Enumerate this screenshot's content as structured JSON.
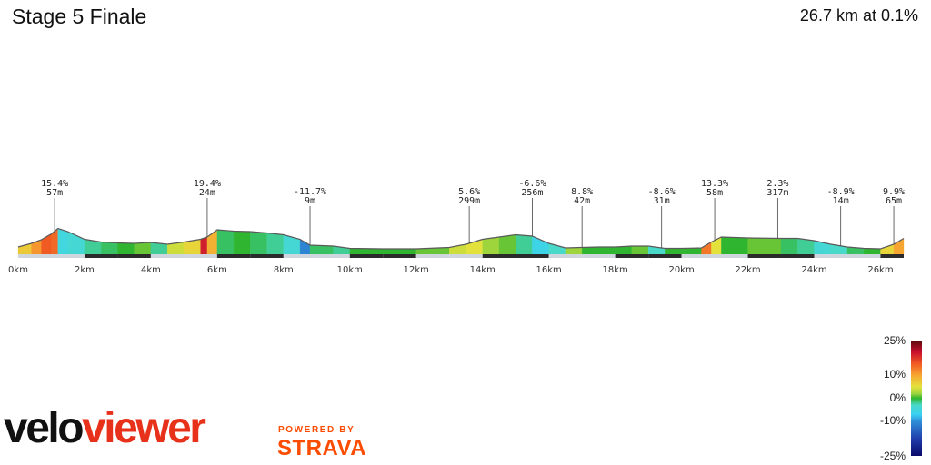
{
  "header": {
    "title": "Stage 5 Finale",
    "summary": "26.7 km at 0.1%"
  },
  "chart_data": {
    "type": "area",
    "x_unit": "km",
    "xlim": [
      0,
      26.7
    ],
    "x_ticks": [
      0,
      2,
      4,
      6,
      8,
      10,
      12,
      14,
      16,
      18,
      20,
      22,
      24,
      26
    ],
    "x_tick_labels": [
      "0km",
      "2km",
      "4km",
      "6km",
      "8km",
      "10km",
      "12km",
      "14km",
      "16km",
      "18km",
      "20km",
      "22km",
      "24km",
      "26km"
    ],
    "profile": [
      {
        "x": 0.0,
        "e": 16,
        "g": 3
      },
      {
        "x": 0.4,
        "e": 24,
        "g": 7
      },
      {
        "x": 0.7,
        "e": 32,
        "g": 11
      },
      {
        "x": 1.0,
        "e": 45,
        "g": 15
      },
      {
        "x": 1.2,
        "e": 57,
        "g": 14
      },
      {
        "x": 1.5,
        "e": 50,
        "g": -5
      },
      {
        "x": 2.0,
        "e": 33,
        "g": -4
      },
      {
        "x": 2.5,
        "e": 27,
        "g": -2
      },
      {
        "x": 3.0,
        "e": 25,
        "g": -1
      },
      {
        "x": 3.5,
        "e": 24,
        "g": 0
      },
      {
        "x": 4.0,
        "e": 26,
        "g": 1
      },
      {
        "x": 4.5,
        "e": 22,
        "g": -2
      },
      {
        "x": 5.0,
        "e": 27,
        "g": 4
      },
      {
        "x": 5.5,
        "e": 33,
        "g": 6
      },
      {
        "x": 5.7,
        "e": 38,
        "g": 19
      },
      {
        "x": 6.0,
        "e": 54,
        "g": 9
      },
      {
        "x": 6.5,
        "e": 51,
        "g": -1
      },
      {
        "x": 7.0,
        "e": 50,
        "g": 0
      },
      {
        "x": 7.5,
        "e": 47,
        "g": -1
      },
      {
        "x": 8.0,
        "e": 43,
        "g": -2
      },
      {
        "x": 8.5,
        "e": 33,
        "g": -4
      },
      {
        "x": 8.8,
        "e": 20,
        "g": -11
      },
      {
        "x": 9.5,
        "e": 18,
        "g": -1
      },
      {
        "x": 10.0,
        "e": 13,
        "g": -2
      },
      {
        "x": 11.0,
        "e": 12,
        "g": 0
      },
      {
        "x": 12.0,
        "e": 12,
        "g": 0
      },
      {
        "x": 13.0,
        "e": 15,
        "g": 1
      },
      {
        "x": 13.5,
        "e": 22,
        "g": 4
      },
      {
        "x": 14.0,
        "e": 33,
        "g": 5
      },
      {
        "x": 14.5,
        "e": 38,
        "g": 2
      },
      {
        "x": 15.0,
        "e": 43,
        "g": 1
      },
      {
        "x": 15.5,
        "e": 40,
        "g": -2
      },
      {
        "x": 16.0,
        "e": 24,
        "g": -6
      },
      {
        "x": 16.5,
        "e": 14,
        "g": -3
      },
      {
        "x": 17.0,
        "e": 15,
        "g": 2
      },
      {
        "x": 17.5,
        "e": 16,
        "g": 0
      },
      {
        "x": 18.0,
        "e": 16,
        "g": 0
      },
      {
        "x": 18.5,
        "e": 18,
        "g": 0
      },
      {
        "x": 19.0,
        "e": 18,
        "g": 1
      },
      {
        "x": 19.5,
        "e": 13,
        "g": -3
      },
      {
        "x": 20.0,
        "e": 13,
        "g": 0
      },
      {
        "x": 20.6,
        "e": 14,
        "g": 0
      },
      {
        "x": 20.9,
        "e": 27,
        "g": 13
      },
      {
        "x": 21.2,
        "e": 38,
        "g": 5
      },
      {
        "x": 22.0,
        "e": 36,
        "g": 0
      },
      {
        "x": 23.0,
        "e": 35,
        "g": 1
      },
      {
        "x": 23.5,
        "e": 35,
        "g": -1
      },
      {
        "x": 24.0,
        "e": 30,
        "g": -2
      },
      {
        "x": 24.5,
        "e": 22,
        "g": -4
      },
      {
        "x": 25.0,
        "e": 16,
        "g": -3
      },
      {
        "x": 25.5,
        "e": 13,
        "g": -1
      },
      {
        "x": 26.0,
        "e": 12,
        "g": 0
      },
      {
        "x": 26.4,
        "e": 22,
        "g": 6
      },
      {
        "x": 26.7,
        "e": 35,
        "g": 10
      }
    ],
    "annotations": [
      {
        "x": 1.1,
        "grade": "15.4%",
        "elev": "57m",
        "row": 0
      },
      {
        "x": 5.7,
        "grade": "19.4%",
        "elev": "24m",
        "row": 0
      },
      {
        "x": 8.8,
        "grade": "-11.7%",
        "elev": "9m",
        "row": 1
      },
      {
        "x": 13.6,
        "grade": "5.6%",
        "elev": "299m",
        "row": 1
      },
      {
        "x": 15.5,
        "grade": "-6.6%",
        "elev": "256m",
        "row": 0
      },
      {
        "x": 17.0,
        "grade": "8.8%",
        "elev": "42m",
        "row": 1
      },
      {
        "x": 19.4,
        "grade": "-8.6%",
        "elev": "31m",
        "row": 1
      },
      {
        "x": 21.0,
        "grade": "13.3%",
        "elev": "58m",
        "row": 0
      },
      {
        "x": 22.9,
        "grade": "2.3%",
        "elev": "317m",
        "row": 0
      },
      {
        "x": 24.8,
        "grade": "-8.9%",
        "elev": "14m",
        "row": 1
      },
      {
        "x": 26.4,
        "grade": "9.9%",
        "elev": "65m",
        "row": 1
      }
    ],
    "legend": {
      "ticks": [
        "25%",
        "10%",
        "0%",
        "-10%",
        "-25%"
      ],
      "tick_values": [
        25,
        10,
        0,
        -10,
        -25
      ],
      "colors": [
        {
          "v": 25,
          "c": "#5a0a0a"
        },
        {
          "v": 20,
          "c": "#c8102e"
        },
        {
          "v": 15,
          "c": "#f05a23"
        },
        {
          "v": 10,
          "c": "#f7a531"
        },
        {
          "v": 5,
          "c": "#e3e13b"
        },
        {
          "v": 2,
          "c": "#9ed53d"
        },
        {
          "v": 0,
          "c": "#2fb52f"
        },
        {
          "v": -3,
          "c": "#49d9c9"
        },
        {
          "v": -7,
          "c": "#3ad2f2"
        },
        {
          "v": -10,
          "c": "#2f8fd8"
        },
        {
          "v": -18,
          "c": "#1f3aa8"
        },
        {
          "v": -25,
          "c": "#0a0a6a"
        }
      ]
    }
  },
  "footer": {
    "logo_part1": "velo",
    "logo_part2": "viewer",
    "powered_by": "POWERED BY",
    "strava": "STRAVA"
  }
}
